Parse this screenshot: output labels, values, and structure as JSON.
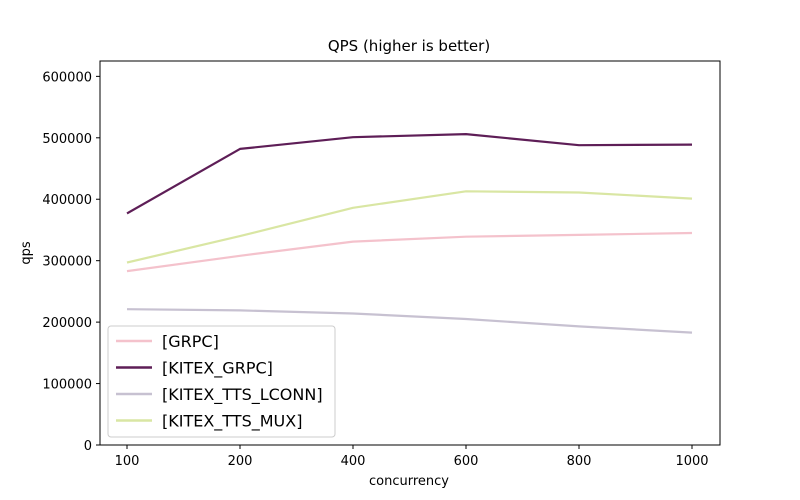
{
  "chart_data": {
    "type": "line",
    "title": "QPS (higher is better)",
    "xlabel": "concurrency",
    "ylabel": "qps",
    "categories": [
      "100",
      "200",
      "400",
      "600",
      "800",
      "1000"
    ],
    "ylim": [
      0,
      625000
    ],
    "yticks": [
      0,
      100000,
      200000,
      300000,
      400000,
      500000,
      600000
    ],
    "ytick_labels": [
      "0",
      "100000",
      "200000",
      "300000",
      "400000",
      "500000",
      "600000"
    ],
    "grid": false,
    "legend_position": "lower-left",
    "series": [
      {
        "name": "[GRPC]",
        "color": "#f4c2cc",
        "values": [
          283000,
          308000,
          331000,
          339000,
          342000,
          345000
        ]
      },
      {
        "name": "[KITEX_GRPC]",
        "color": "#5e1e57",
        "values": [
          377000,
          482000,
          501000,
          506000,
          488000,
          489000
        ]
      },
      {
        "name": "[KITEX_TTS_LCONN]",
        "color": "#c7c1d1",
        "values": [
          221000,
          219000,
          214000,
          205000,
          193000,
          183000
        ]
      },
      {
        "name": "[KITEX_TTS_MUX]",
        "color": "#d9e6a3",
        "values": [
          297000,
          340000,
          386000,
          413000,
          411000,
          401000
        ]
      }
    ]
  }
}
